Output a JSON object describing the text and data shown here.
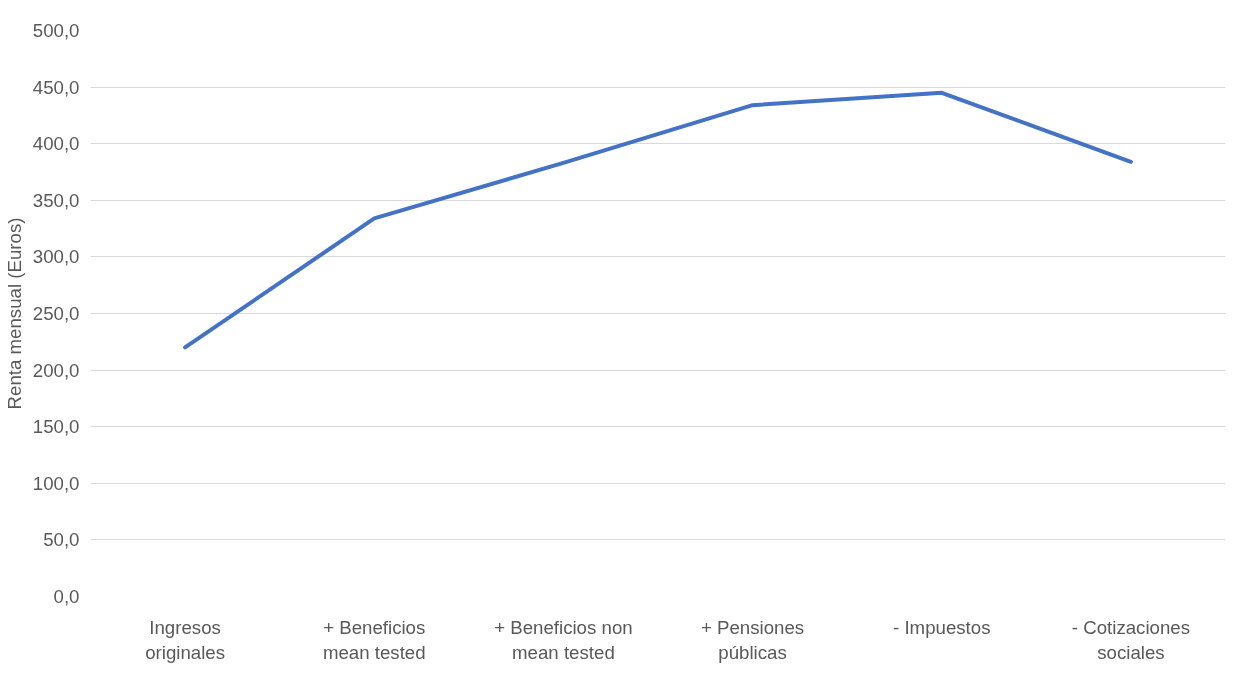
{
  "chart_data": {
    "type": "line",
    "ylabel": "Renta mensual (Euros)",
    "categories": [
      "Ingresos originales",
      "+ Beneficios mean tested",
      "+ Beneficios non mean tested",
      "+ Pensiones públicas",
      "- Impuestos",
      "- Cotizaciones sociales"
    ],
    "series": [
      {
        "color": "#4472c4",
        "values": [
          220,
          334,
          383,
          434,
          445,
          384
        ]
      }
    ],
    "ylim": [
      0,
      500
    ],
    "yticks": [
      {
        "value": 0,
        "label": "0,0"
      },
      {
        "value": 50,
        "label": "50,0"
      },
      {
        "value": 100,
        "label": "100,0"
      },
      {
        "value": 150,
        "label": "150,0"
      },
      {
        "value": 200,
        "label": "200,0"
      },
      {
        "value": 250,
        "label": "250,0"
      },
      {
        "value": 300,
        "label": "300,0"
      },
      {
        "value": 350,
        "label": "350,0"
      },
      {
        "value": 400,
        "label": "400,0"
      },
      {
        "value": 450,
        "label": "450,0"
      },
      {
        "value": 500,
        "label": "500,0"
      }
    ],
    "grid": "y",
    "marker": "none",
    "line_style": "solid"
  }
}
